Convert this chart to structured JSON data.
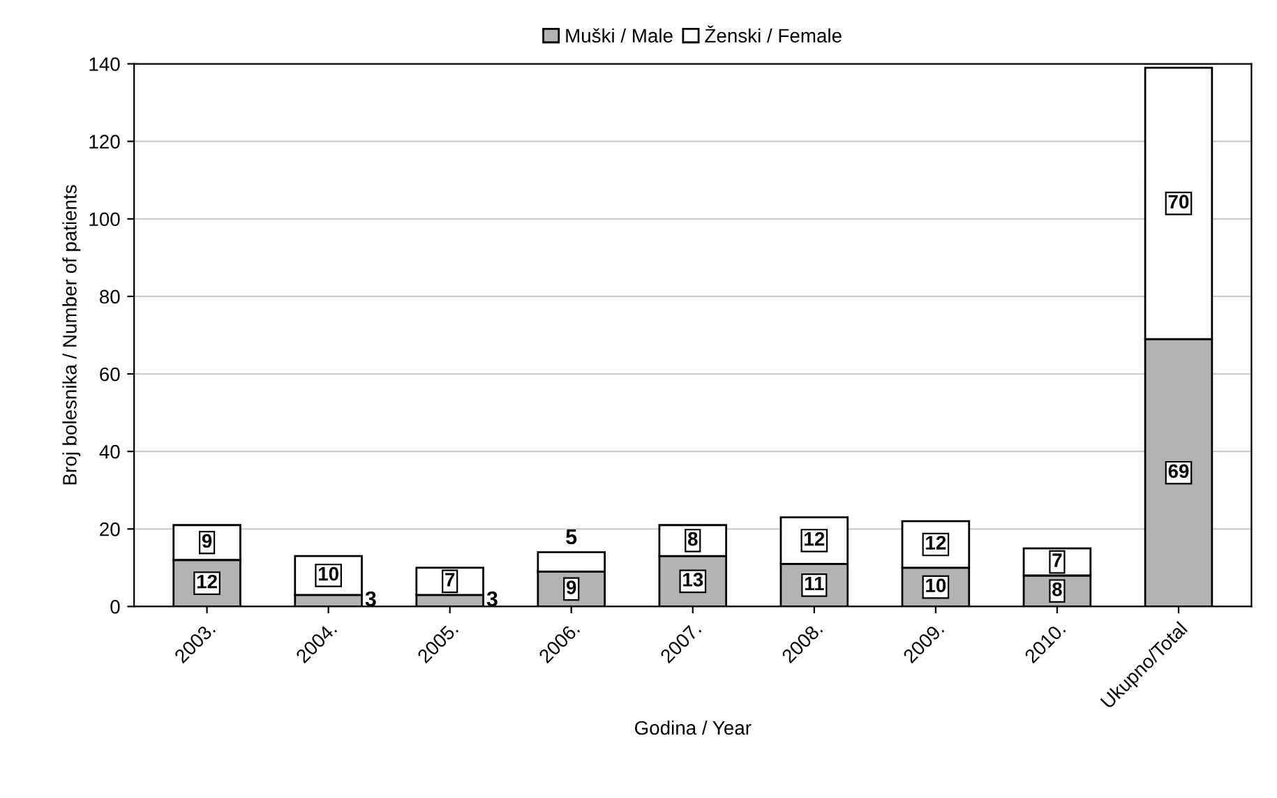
{
  "chart_data": {
    "type": "bar",
    "stacked": true,
    "xlabel": "Godina / Year",
    "ylabel": "Broj bolesnika / Number of patients",
    "categories": [
      "2003.",
      "2004.",
      "2005.",
      "2006.",
      "2007.",
      "2008.",
      "2009.",
      "2010.",
      "Ukupno/Total"
    ],
    "series": [
      {
        "name": "Muški / Male",
        "color": "#b3b3b3",
        "values": [
          12,
          3,
          3,
          9,
          13,
          11,
          10,
          8,
          69
        ]
      },
      {
        "name": "Ženski / Female",
        "color": "#ffffff",
        "values": [
          9,
          10,
          7,
          5,
          8,
          12,
          12,
          7,
          70
        ]
      }
    ],
    "ylim": [
      0,
      140
    ],
    "yticks": [
      0,
      20,
      40,
      60,
      80,
      100,
      120,
      140
    ],
    "grid": "y",
    "legend": "top",
    "data_labels": true
  }
}
